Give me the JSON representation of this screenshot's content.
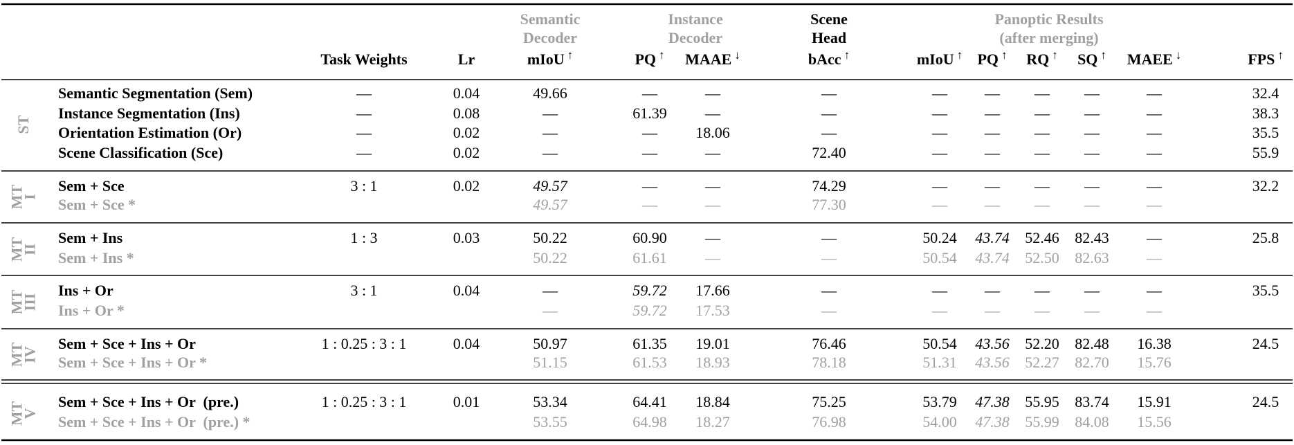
{
  "header": {
    "groups": [
      {
        "lines": [
          "Semantic",
          "Decoder"
        ]
      },
      {
        "lines": [
          "Instance",
          "Decoder"
        ]
      },
      {
        "lines": [
          "Scene",
          "Head"
        ]
      },
      {
        "lines": [
          "Panoptic Results",
          "(after merging)"
        ]
      }
    ],
    "columns": [
      {
        "text": "Task Weights"
      },
      {
        "text": "Lr"
      },
      {
        "text": "mIoU",
        "arrow": "↑"
      },
      {
        "text": "PQ",
        "arrow": "↑"
      },
      {
        "text": "MAAE",
        "arrow": "↓"
      },
      {
        "text": "bAcc",
        "arrow": "↑"
      },
      {
        "text": "mIoU",
        "arrow": "↑"
      },
      {
        "text": "PQ",
        "arrow": "↑"
      },
      {
        "text": "RQ",
        "arrow": "↑"
      },
      {
        "text": "SQ",
        "arrow": "↑"
      },
      {
        "text": "MAEE",
        "arrow": "↓"
      },
      {
        "text": "FPS",
        "arrow": "↑"
      }
    ]
  },
  "table": {
    "groups": [
      {
        "label": [
          "ST"
        ],
        "rows": [
          {
            "label": "Semantic Segmentation (Sem)",
            "cells": [
              "—",
              "0.04",
              "49.66",
              "—",
              "—",
              "—",
              "—",
              "—",
              "—",
              "—",
              "—",
              "32.4"
            ]
          },
          {
            "label": "Instance Segmentation (Ins)",
            "cells": [
              "—",
              "0.08",
              "—",
              "61.39",
              "—",
              "—",
              "—",
              "—",
              "—",
              "—",
              "—",
              "38.3"
            ]
          },
          {
            "label": "Orientation Estimation (Or)",
            "cells": [
              "—",
              "0.02",
              "—",
              "—",
              "18.06",
              "—",
              "—",
              "—",
              "—",
              "—",
              "—",
              "35.5"
            ]
          },
          {
            "label": "Scene Classification (Sce)",
            "cells": [
              "—",
              "0.02",
              "—",
              "—",
              "—",
              "72.40",
              "—",
              "—",
              "—",
              "—",
              "—",
              "55.9"
            ]
          }
        ]
      },
      {
        "label": [
          "MT",
          "I"
        ],
        "rows": [
          {
            "label": "Sem + Sce",
            "cells": [
              "3 : 1",
              "0.02",
              "49.57",
              "—",
              "—",
              "74.29",
              "—",
              "—",
              "—",
              "—",
              "—",
              "32.2"
            ],
            "italic": [
              2
            ]
          },
          {
            "label": "Sem + Sce *",
            "cells": [
              null,
              null,
              "49.57",
              "—",
              "—",
              "77.30",
              "—",
              "—",
              "—",
              "—",
              "—",
              null
            ],
            "italic": [
              2
            ],
            "muted": true
          }
        ]
      },
      {
        "label": [
          "MT",
          "II"
        ],
        "rows": [
          {
            "label": "Sem + Ins",
            "cells": [
              "1 : 3",
              "0.03",
              "50.22",
              "60.90",
              "—",
              "—",
              "50.24",
              "43.74",
              "52.46",
              "82.43",
              "—",
              "25.8"
            ],
            "italic": [
              7
            ]
          },
          {
            "label": "Sem + Ins *",
            "cells": [
              null,
              null,
              "50.22",
              "61.61",
              "—",
              "—",
              "50.54",
              "43.74",
              "52.50",
              "82.63",
              "—",
              null
            ],
            "italic": [
              7
            ],
            "muted": true
          }
        ]
      },
      {
        "label": [
          "MT",
          "III"
        ],
        "rows": [
          {
            "label": "Ins + Or",
            "cells": [
              "3 : 1",
              "0.04",
              "—",
              "59.72",
              "17.66",
              "—",
              "—",
              "—",
              "—",
              "—",
              "—",
              "35.5"
            ],
            "italic": [
              3
            ]
          },
          {
            "label": "Ins + Or *",
            "cells": [
              null,
              null,
              "—",
              "59.72",
              "17.53",
              "—",
              "—",
              "—",
              "—",
              "—",
              "—",
              null
            ],
            "italic": [
              3
            ],
            "muted": true
          }
        ]
      },
      {
        "label": [
          "MT",
          "IV"
        ],
        "rows": [
          {
            "label": "Sem + Sce + Ins + Or",
            "cells": [
              "1 : 0.25 : 3 : 1",
              "0.04",
              "50.97",
              "61.35",
              "19.01",
              "76.46",
              "50.54",
              "43.56",
              "52.20",
              "82.48",
              "16.38",
              "24.5"
            ],
            "italic": [
              7
            ]
          },
          {
            "label": "Sem + Sce + Ins + Or *",
            "cells": [
              null,
              null,
              "51.15",
              "61.53",
              "18.93",
              "78.18",
              "51.31",
              "43.56",
              "52.27",
              "82.70",
              "15.76",
              null
            ],
            "italic": [
              7
            ],
            "muted": true
          }
        ]
      },
      {
        "label": [
          "MT",
          "V"
        ],
        "rows": [
          {
            "label": "Sem + Sce + Ins + Or  (pre.)",
            "cells": [
              "1 : 0.25 : 3 : 1",
              "0.01",
              "53.34",
              "64.41",
              "18.84",
              "75.25",
              "53.79",
              "47.38",
              "55.95",
              "83.74",
              "15.91",
              "24.5"
            ],
            "italic": [
              7
            ]
          },
          {
            "label": "Sem + Sce + Ins + Or  (pre.) *",
            "cells": [
              null,
              null,
              "53.55",
              "64.98",
              "18.27",
              "76.98",
              "54.00",
              "47.38",
              "55.99",
              "84.08",
              "15.56",
              null
            ],
            "italic": [
              7
            ],
            "muted": true
          }
        ]
      }
    ]
  }
}
